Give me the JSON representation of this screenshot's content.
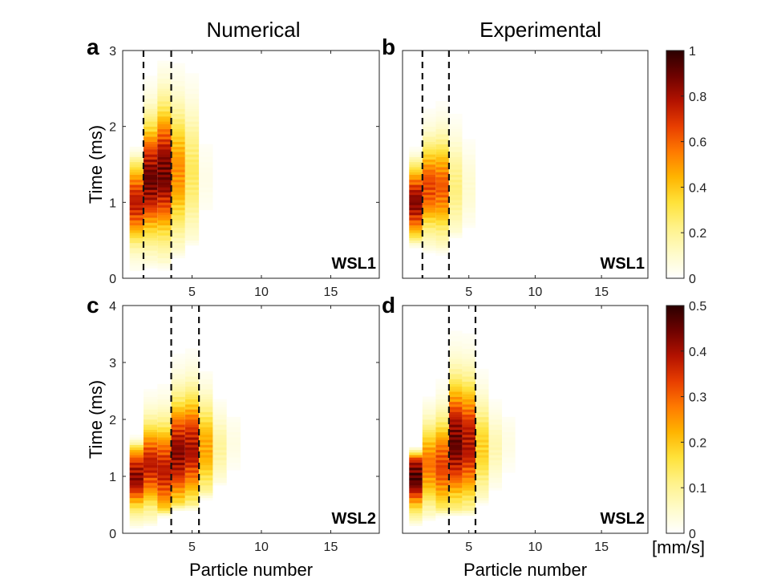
{
  "figure": {
    "column_titles": [
      "Numerical",
      "Experimental"
    ],
    "unit_label": "[mm/s]"
  },
  "colormap": [
    "#ffffff",
    "#fffbc8",
    "#fff28a",
    "#ffe23a",
    "#ffb400",
    "#ff7a00",
    "#e83e00",
    "#b31200",
    "#6e0200",
    "#2b0000"
  ],
  "chart_data": [
    {
      "type": "heatmap",
      "panel": "a",
      "column": "Numerical",
      "tag": "WSL1",
      "xlabel": "",
      "ylabel": "Time (ms)",
      "xlim": [
        0,
        18.5
      ],
      "ylim": [
        0,
        3
      ],
      "xticks": [
        5,
        10,
        15
      ],
      "yticks": [
        0,
        1,
        2,
        3
      ],
      "clim": [
        0,
        1
      ],
      "dashed_x": [
        1.5,
        3.5
      ],
      "bands": [
        {
          "p": 1,
          "t0": 0.0,
          "t1": 1.75,
          "peak": 0.8,
          "center": 1.0,
          "width": 0.5
        },
        {
          "p": 2,
          "t0": 0.1,
          "t1": 3.0,
          "peak": 0.95,
          "center": 1.3,
          "width": 0.7
        },
        {
          "p": 3,
          "t0": 0.1,
          "t1": 3.0,
          "peak": 0.95,
          "center": 1.4,
          "width": 0.8
        },
        {
          "p": 4,
          "t0": 0.25,
          "t1": 3.0,
          "peak": 0.55,
          "center": 1.4,
          "width": 0.8
        },
        {
          "p": 5,
          "t0": 0.4,
          "t1": 3.0,
          "peak": 0.3,
          "center": 1.4,
          "width": 0.8
        },
        {
          "p": 6,
          "t0": 0.8,
          "t1": 2.2,
          "peak": 0.05,
          "center": 1.3,
          "width": 0.5
        }
      ]
    },
    {
      "type": "heatmap",
      "panel": "b",
      "column": "Experimental",
      "tag": "WSL1",
      "xlabel": "",
      "ylabel": "",
      "xlim": [
        0,
        18.5
      ],
      "ylim": [
        0,
        3
      ],
      "xticks": [
        5,
        10,
        15
      ],
      "yticks": [],
      "clim": [
        0,
        1
      ],
      "dashed_x": [
        1.5,
        3.5
      ],
      "bands": [
        {
          "p": 1,
          "t0": 0.4,
          "t1": 1.75,
          "peak": 0.9,
          "center": 1.0,
          "width": 0.45
        },
        {
          "p": 2,
          "t0": 0.3,
          "t1": 3.0,
          "peak": 0.7,
          "center": 1.2,
          "width": 0.55
        },
        {
          "p": 3,
          "t0": 0.3,
          "t1": 3.0,
          "peak": 0.65,
          "center": 1.2,
          "width": 0.6
        },
        {
          "p": 4,
          "t0": 0.5,
          "t1": 2.6,
          "peak": 0.25,
          "center": 1.2,
          "width": 0.6
        },
        {
          "p": 5,
          "t0": 0.6,
          "t1": 2.2,
          "peak": 0.1,
          "center": 1.2,
          "width": 0.5
        }
      ]
    },
    {
      "type": "heatmap",
      "panel": "c",
      "column": "Numerical",
      "tag": "WSL2",
      "xlabel": "Particle number",
      "ylabel": "Time (ms)",
      "xlim": [
        0,
        18.5
      ],
      "ylim": [
        0,
        4
      ],
      "xticks": [
        5,
        10,
        15
      ],
      "yticks": [
        0,
        1,
        2,
        3,
        4
      ],
      "clim": [
        0,
        0.5
      ],
      "dashed_x": [
        3.5,
        5.5
      ],
      "bands": [
        {
          "p": 1,
          "t0": 0.05,
          "t1": 1.7,
          "peak": 0.45,
          "center": 1.0,
          "width": 0.55
        },
        {
          "p": 2,
          "t0": 0.1,
          "t1": 3.2,
          "peak": 0.4,
          "center": 1.2,
          "width": 0.7
        },
        {
          "p": 3,
          "t0": 0.3,
          "t1": 3.5,
          "peak": 0.4,
          "center": 1.1,
          "width": 0.8
        },
        {
          "p": 4,
          "t0": 0.4,
          "t1": 4.0,
          "peak": 0.45,
          "center": 1.4,
          "width": 0.9
        },
        {
          "p": 5,
          "t0": 0.4,
          "t1": 4.0,
          "peak": 0.42,
          "center": 1.5,
          "width": 0.9
        },
        {
          "p": 6,
          "t0": 0.6,
          "t1": 3.0,
          "peak": 0.25,
          "center": 1.5,
          "width": 0.8
        },
        {
          "p": 7,
          "t0": 0.8,
          "t1": 2.5,
          "peak": 0.1,
          "center": 1.5,
          "width": 0.6
        },
        {
          "p": 8,
          "t0": 1.0,
          "t1": 2.2,
          "peak": 0.03,
          "center": 1.6,
          "width": 0.5
        }
      ]
    },
    {
      "type": "heatmap",
      "panel": "d",
      "column": "Experimental",
      "tag": "WSL2",
      "xlabel": "Particle number",
      "ylabel": "",
      "xlim": [
        0,
        18.5
      ],
      "ylim": [
        0,
        4
      ],
      "xticks": [
        5,
        10,
        15
      ],
      "yticks": [],
      "clim": [
        0,
        0.5
      ],
      "dashed_x": [
        3.5,
        5.5
      ],
      "bands": [
        {
          "p": 1,
          "t0": 0.1,
          "t1": 1.5,
          "peak": 0.5,
          "center": 1.0,
          "width": 0.55
        },
        {
          "p": 2,
          "t0": 0.2,
          "t1": 2.5,
          "peak": 0.3,
          "center": 1.2,
          "width": 0.7
        },
        {
          "p": 3,
          "t0": 0.3,
          "t1": 3.0,
          "peak": 0.35,
          "center": 1.2,
          "width": 0.8
        },
        {
          "p": 4,
          "t0": 0.3,
          "t1": 4.0,
          "peak": 0.48,
          "center": 1.6,
          "width": 1.0
        },
        {
          "p": 5,
          "t0": 0.3,
          "t1": 4.0,
          "peak": 0.42,
          "center": 1.6,
          "width": 1.0
        },
        {
          "p": 6,
          "t0": 0.5,
          "t1": 3.2,
          "peak": 0.2,
          "center": 1.5,
          "width": 0.8
        },
        {
          "p": 7,
          "t0": 0.7,
          "t1": 2.6,
          "peak": 0.08,
          "center": 1.5,
          "width": 0.6
        },
        {
          "p": 8,
          "t0": 0.9,
          "t1": 2.2,
          "peak": 0.03,
          "center": 1.6,
          "width": 0.5
        }
      ]
    }
  ],
  "colorbars": [
    {
      "name": "colorbar-top",
      "clim": [
        0,
        1
      ],
      "ticks": [
        0,
        0.2,
        0.4,
        0.6,
        0.8,
        1
      ]
    },
    {
      "name": "colorbar-bottom",
      "clim": [
        0,
        0.5
      ],
      "ticks": [
        0,
        0.1,
        0.2,
        0.3,
        0.4,
        0.5
      ]
    }
  ]
}
